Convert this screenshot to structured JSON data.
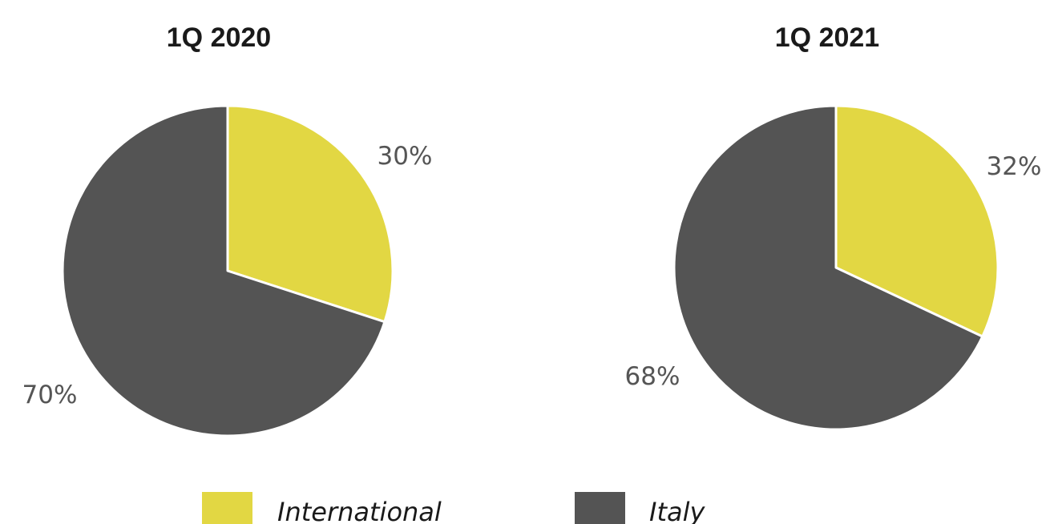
{
  "chart_data": [
    {
      "type": "pie",
      "title": "1Q 2020",
      "categories": [
        "International",
        "Italy"
      ],
      "values": [
        30,
        70
      ],
      "labels": [
        "30%",
        "70%"
      ]
    },
    {
      "type": "pie",
      "title": "1Q 2021",
      "categories": [
        "International",
        "Italy"
      ],
      "values": [
        32,
        68
      ],
      "labels": [
        "32%",
        "68%"
      ]
    }
  ],
  "legend": {
    "items": [
      {
        "label": "International",
        "color": "#e2d743"
      },
      {
        "label": "Italy",
        "color": "#545454"
      }
    ]
  },
  "colors": {
    "International": "#e2d743",
    "Italy": "#545454"
  }
}
